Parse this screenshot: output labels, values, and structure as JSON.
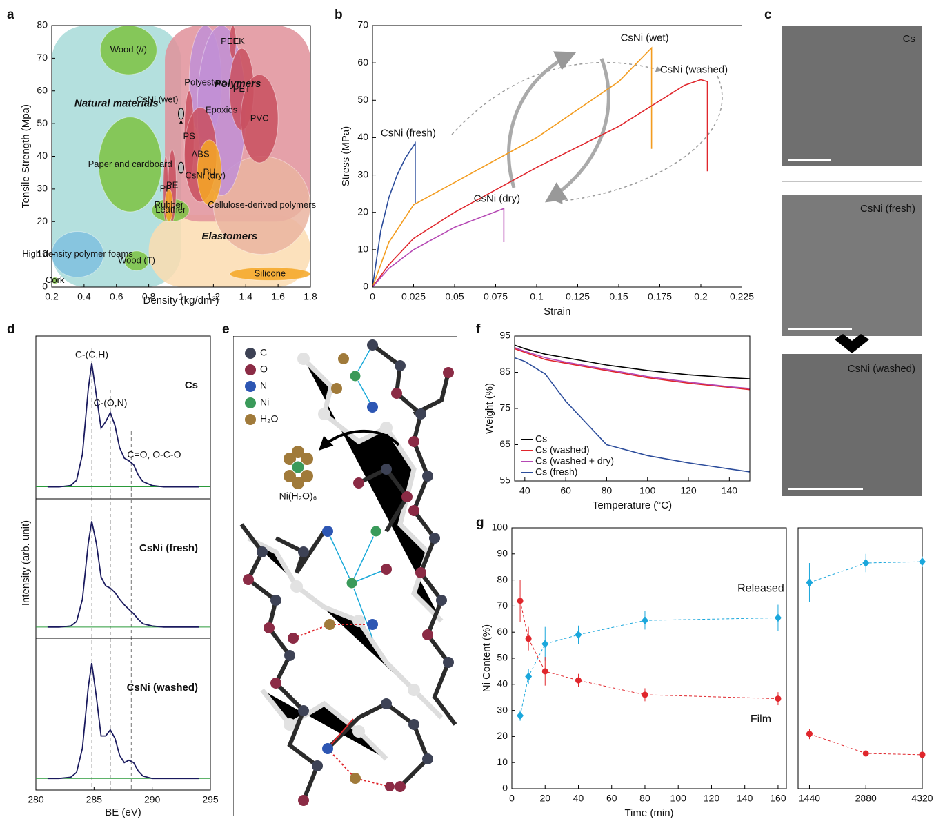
{
  "chart_data": [
    {
      "panel": "a",
      "type": "region",
      "x_label": "Density (kg/dm³)",
      "y_label": "Tensile Strength (Mpa)",
      "xlim": [
        0.2,
        1.8
      ],
      "xticks": [
        0.2,
        0.4,
        0.6,
        0.8,
        1,
        1.2,
        1.4,
        1.6,
        1.8
      ],
      "ylim": [
        0,
        80
      ],
      "yticks": [
        0,
        10,
        20,
        30,
        40,
        50,
        60,
        70,
        80
      ],
      "regions": [
        {
          "name": "Natural materials",
          "group": true,
          "color": "#a7dbd8",
          "label_color": "#1a8a4a",
          "x": [
            0.2,
            1.0
          ],
          "y": [
            0,
            80
          ]
        },
        {
          "name": "Elastomers",
          "group": true,
          "color": "#fcdcb0",
          "label_color": "#f5a623",
          "x": [
            0.8,
            1.8
          ],
          "y": [
            0,
            22
          ]
        },
        {
          "name": "Polymers",
          "group": true,
          "color": "#e0909a",
          "label_color": "#a0206a",
          "x": [
            0.9,
            1.8
          ],
          "y": [
            20,
            80
          ]
        },
        {
          "name": "Cellulose-derived polymers",
          "color": "#eab4a0",
          "label_color": "#e0262c",
          "x": [
            1.2,
            1.8
          ],
          "y": [
            10,
            40
          ]
        },
        {
          "name": "Wood (//)",
          "color": "#7dc242",
          "label_color": "#d8f0b0",
          "x": [
            0.5,
            0.85
          ],
          "y": [
            65,
            80
          ]
        },
        {
          "name": "Paper and cardboard",
          "color": "#7dc242",
          "label_color": "#e4f5c8",
          "x": [
            0.49,
            0.88
          ],
          "y": [
            23,
            52
          ]
        },
        {
          "name": "Leather",
          "color": "#7dc242",
          "label_color": "#2e9a5a",
          "x": [
            0.82,
            1.05
          ],
          "y": [
            20,
            27
          ]
        },
        {
          "name": "Wood (T)",
          "color": "#7dc242",
          "label_color": "#2e9a5a",
          "x": [
            0.65,
            0.8
          ],
          "y": [
            5,
            11
          ]
        },
        {
          "name": "Cork",
          "color": "#7dc242",
          "label_color": "#2e9a5a",
          "x": [
            0.2,
            0.24
          ],
          "y": [
            1,
            3
          ]
        },
        {
          "name": "High density polymer foams",
          "color": "#7fbfdf",
          "label_color": "#1e6fb5",
          "x": [
            0.2,
            0.52
          ],
          "y": [
            3,
            17
          ]
        },
        {
          "name": "Polyesters",
          "color": "#c18fd6",
          "label_color": "#8a3aa8",
          "x": [
            1.05,
            1.25
          ],
          "y": [
            45,
            80
          ]
        },
        {
          "name": "Epoxies",
          "color": "#c18fd6",
          "label_color": "#8a3aa8",
          "x": [
            1.1,
            1.4
          ],
          "y": [
            28,
            80
          ]
        },
        {
          "name": "PEEK",
          "color": "#c9505f",
          "label_color": "#e0262c",
          "x": [
            1.3,
            1.34
          ],
          "y": [
            70,
            80
          ]
        },
        {
          "name": "PET",
          "color": "#c9505f",
          "label_color": "#e0262c",
          "x": [
            1.3,
            1.45
          ],
          "y": [
            48,
            73
          ]
        },
        {
          "name": "PVC",
          "color": "#c9505f",
          "label_color": "#e0262c",
          "x": [
            1.37,
            1.6
          ],
          "y": [
            38,
            65
          ]
        },
        {
          "name": "PS",
          "color": "#c9505f",
          "label_color": "#e0262c",
          "x": [
            1.02,
            1.08
          ],
          "y": [
            32,
            60
          ]
        },
        {
          "name": "ABS",
          "color": "#c9505f",
          "label_color": "#e0262c",
          "x": [
            1.02,
            1.22
          ],
          "y": [
            26,
            55
          ]
        },
        {
          "name": "PU",
          "color": "#f5a623",
          "label_color": "#e0262c",
          "x": [
            1.1,
            1.25
          ],
          "y": [
            25,
            45
          ]
        },
        {
          "name": "PE",
          "color": "#c9505f",
          "label_color": "#e0262c",
          "x": [
            0.92,
            0.97
          ],
          "y": [
            20,
            42
          ]
        },
        {
          "name": "PP",
          "color": "#c9505f",
          "label_color": "#e0262c",
          "x": [
            0.89,
            0.92
          ],
          "y": [
            20,
            40
          ]
        },
        {
          "name": "Rubber",
          "color": "#f5a623",
          "label_color": "#e8582c",
          "x": [
            0.9,
            0.95
          ],
          "y": [
            20,
            30
          ]
        },
        {
          "name": "Silicone",
          "color": "#f5a623",
          "label_color": "#e0262c",
          "x": [
            1.3,
            1.8
          ],
          "y": [
            2,
            6
          ]
        }
      ],
      "points": [
        {
          "name": "CsNi (wet)",
          "x": 1,
          "y": 53
        },
        {
          "name": "CsNi (dry)",
          "x": 1,
          "y": 36.5
        }
      ]
    },
    {
      "panel": "b",
      "type": "line",
      "x_label": "Strain",
      "y_label": "Stress (MPa)",
      "xlim": [
        0,
        0.225
      ],
      "xticks": [
        0,
        0.025,
        0.05,
        0.075,
        0.1,
        0.125,
        0.15,
        0.175,
        0.2,
        0.225
      ],
      "ylim": [
        0,
        70
      ],
      "yticks": [
        0,
        10,
        20,
        30,
        40,
        50,
        60,
        70
      ],
      "series": [
        {
          "name": "CsNi (fresh)",
          "color": "#2b4c9b",
          "x": [
            0,
            0.005,
            0.01,
            0.015,
            0.02,
            0.026,
            0.026
          ],
          "values": [
            0,
            15,
            24,
            30,
            34.5,
            38.5,
            22.5
          ]
        },
        {
          "name": "CsNi (wet)",
          "color": "#f39c1f",
          "x": [
            0,
            0.01,
            0.025,
            0.05,
            0.1,
            0.15,
            0.17,
            0.17
          ],
          "values": [
            0,
            12,
            22,
            28,
            40,
            55,
            64,
            37
          ]
        },
        {
          "name": "CsNi (washed)",
          "color": "#e0262c",
          "x": [
            0,
            0.01,
            0.025,
            0.05,
            0.1,
            0.15,
            0.19,
            0.2,
            0.204,
            0.204
          ],
          "values": [
            0,
            6,
            13,
            20,
            32,
            43,
            54,
            55.5,
            55,
            31
          ]
        },
        {
          "name": "CsNi (dry)",
          "color": "#b548b4",
          "x": [
            0,
            0.01,
            0.025,
            0.05,
            0.08,
            0.08
          ],
          "values": [
            0,
            5,
            10,
            16,
            21,
            12
          ]
        }
      ]
    },
    {
      "panel": "d",
      "type": "spectra",
      "x_label": "BE (eV)",
      "y_label": "Intensity (arb. unit)",
      "xlim": [
        280,
        295
      ],
      "xticks": [
        280,
        285,
        290,
        295
      ],
      "peaks": [
        284.8,
        286.4,
        288.2
      ],
      "peak_labels": [
        "C-(C,H)",
        "C-(O,N)",
        "C=O, O-C-O"
      ],
      "x": [
        281,
        282,
        283,
        283.5,
        284,
        284.5,
        284.8,
        285.2,
        285.6,
        286,
        286.4,
        286.8,
        287.2,
        287.6,
        288,
        288.4,
        288.8,
        289.2,
        290,
        291,
        292,
        293,
        294
      ],
      "series": [
        {
          "name": "Cs",
          "color": "#1a1a5e",
          "values": [
            0.05,
            0.05,
            0.06,
            0.1,
            0.3,
            0.8,
            1.0,
            0.75,
            0.5,
            0.55,
            0.62,
            0.52,
            0.35,
            0.27,
            0.25,
            0.22,
            0.14,
            0.09,
            0.06,
            0.05,
            0.05,
            0.05,
            0.05
          ]
        },
        {
          "name": "CsNi (fresh)",
          "color": "#1a1a5e",
          "values": [
            0.05,
            0.05,
            0.06,
            0.1,
            0.3,
            0.8,
            1.0,
            0.8,
            0.5,
            0.42,
            0.4,
            0.36,
            0.3,
            0.25,
            0.21,
            0.17,
            0.12,
            0.08,
            0.06,
            0.05,
            0.05,
            0.05,
            0.05
          ]
        },
        {
          "name": "CsNi (washed)",
          "color": "#1a1a5e",
          "values": [
            0.05,
            0.05,
            0.06,
            0.1,
            0.3,
            0.8,
            1.0,
            0.72,
            0.4,
            0.4,
            0.45,
            0.38,
            0.24,
            0.18,
            0.2,
            0.18,
            0.11,
            0.07,
            0.05,
            0.05,
            0.05,
            0.05,
            0.05
          ]
        }
      ]
    },
    {
      "panel": "f",
      "type": "line",
      "x_label": "Temperature (°C)",
      "y_label": "Weight (%)",
      "xlim": [
        35,
        150
      ],
      "xticks": [
        40,
        60,
        80,
        100,
        120,
        140
      ],
      "ylim": [
        55,
        95
      ],
      "yticks": [
        55,
        65,
        75,
        85,
        95
      ],
      "x": [
        35,
        40,
        50,
        60,
        80,
        100,
        120,
        140,
        150
      ],
      "series": [
        {
          "name": "Cs",
          "color": "#000000",
          "values": [
            92.5,
            91.5,
            90,
            89,
            87,
            85.5,
            84.3,
            83.5,
            83.2
          ]
        },
        {
          "name": "Cs (washed)",
          "color": "#e0262c",
          "values": [
            91.5,
            90.5,
            88.5,
            87.5,
            85.5,
            83.5,
            82,
            80.8,
            80.2
          ]
        },
        {
          "name": "Cs (washed + dry)",
          "color": "#b548b4",
          "values": [
            91.8,
            90.8,
            89,
            87.8,
            85.8,
            83.8,
            82.3,
            81,
            80.5
          ]
        },
        {
          "name": "Cs (fresh)",
          "color": "#2b4c9b",
          "values": [
            89,
            88,
            84.5,
            77,
            65,
            62,
            60,
            58.3,
            57.5
          ]
        }
      ]
    },
    {
      "panel": "g",
      "type": "scatter",
      "x_label": "Time (min)",
      "y_label": "Ni Content (%)",
      "xlim": [
        0,
        165
      ],
      "xticks": [
        0,
        20,
        40,
        60,
        80,
        100,
        120,
        140,
        160
      ],
      "x2lim": [
        1150,
        4320
      ],
      "x2ticks": [
        1440,
        2880,
        4320
      ],
      "ylim": [
        0,
        100
      ],
      "yticks": [
        0,
        10,
        20,
        30,
        40,
        50,
        60,
        70,
        80,
        90,
        100
      ],
      "x": [
        5,
        10,
        20,
        40,
        80,
        160,
        1440,
        2880,
        4320
      ],
      "series": [
        {
          "name": "Released",
          "color": "#1aa7dc",
          "values": [
            28,
            43,
            55.5,
            59,
            64.5,
            65.5,
            79,
            86.5,
            87
          ],
          "errors": [
            2,
            3,
            6.5,
            3.5,
            3.5,
            5,
            7.5,
            3.5,
            2
          ]
        },
        {
          "name": "Film",
          "color": "#e0262c",
          "values": [
            72,
            57.5,
            45,
            41.5,
            36,
            34.5,
            21,
            13.5,
            13
          ],
          "errors": [
            8,
            4.5,
            5.5,
            2.5,
            2.5,
            2.5,
            2,
            0.5,
            0.5
          ]
        }
      ]
    }
  ],
  "micrographs": {
    "panel": "c",
    "labels": [
      "Cs",
      "CsNi (fresh)",
      "CsNi (washed)"
    ],
    "label_colors": [
      "#000000",
      "#3b5bb5",
      "#e0262c"
    ]
  },
  "structure": {
    "panel": "e",
    "legend": [
      {
        "name": "C",
        "color": "#3d4255"
      },
      {
        "name": "O",
        "color": "#8b2b45"
      },
      {
        "name": "N",
        "color": "#2d56b3"
      },
      {
        "name": "Ni",
        "color": "#3a9a5a"
      },
      {
        "name": "H₂O",
        "color": "#a07a3a"
      }
    ],
    "cluster_label": "Ni(H₂O)₆"
  }
}
